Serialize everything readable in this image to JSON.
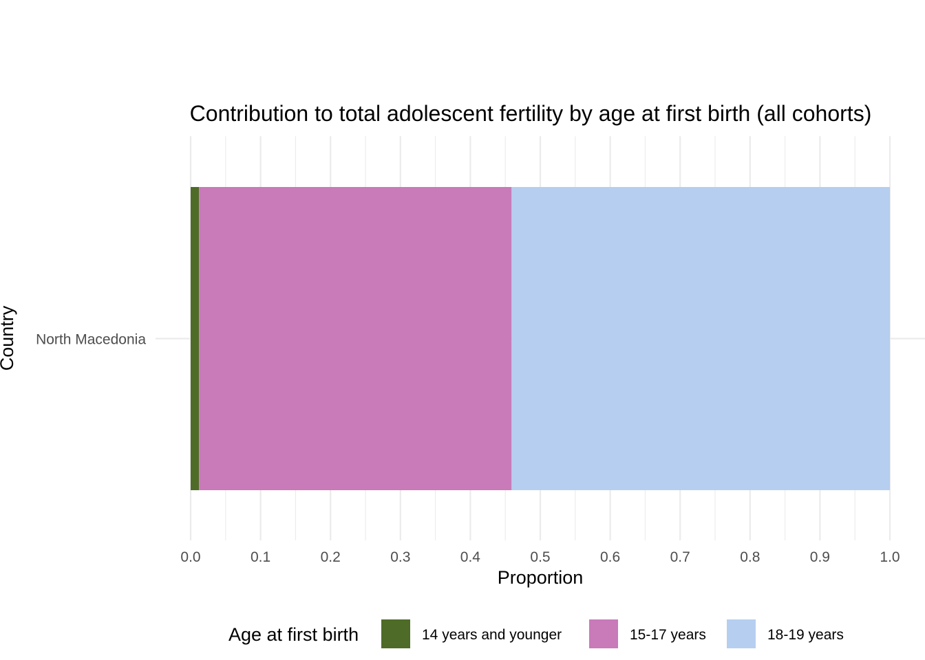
{
  "chart_data": {
    "type": "bar",
    "orientation": "horizontal",
    "stacked": true,
    "title": "Contribution to total adolescent fertility by age at first birth (all cohorts)",
    "xlabel": "Proportion",
    "ylabel": "Country",
    "categories": [
      "North Macedonia"
    ],
    "xlim": [
      0,
      1
    ],
    "x_ticks": [
      "0.0",
      "0.1",
      "0.2",
      "0.3",
      "0.4",
      "0.5",
      "0.6",
      "0.7",
      "0.8",
      "0.9",
      "1.0"
    ],
    "grid": true,
    "legend": {
      "title": "Age at first birth",
      "position": "bottom"
    },
    "series": [
      {
        "name": "14 years and younger",
        "color": "#4e6b27",
        "values": [
          0.012
        ]
      },
      {
        "name": "15-17 years",
        "color": "#c87ab9",
        "values": [
          0.447
        ]
      },
      {
        "name": "18-19 years",
        "color": "#b6cef0",
        "values": [
          0.541
        ]
      }
    ]
  }
}
